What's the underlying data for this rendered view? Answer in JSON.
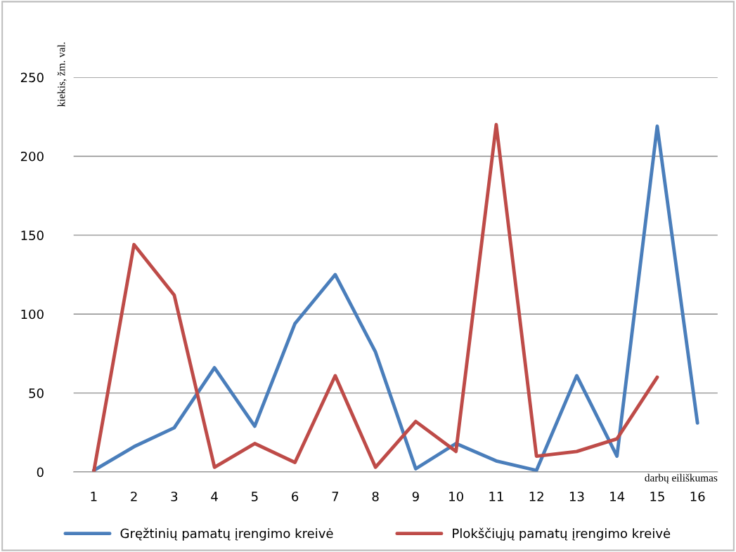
{
  "chart_data": {
    "type": "line",
    "ylabel": "kiekis, žm. val.",
    "xlabel": "darbų eiliškumas",
    "categories": [
      "1",
      "2",
      "3",
      "4",
      "5",
      "6",
      "7",
      "8",
      "9",
      "10",
      "11",
      "12",
      "13",
      "14",
      "15",
      "16"
    ],
    "series": [
      {
        "name": "Gręžtinių pamatų įrengimo kreivė",
        "color": "#4a7ebb",
        "values": [
          1,
          16,
          28,
          66,
          29,
          94,
          125,
          76,
          2,
          18,
          7,
          1,
          61,
          10,
          219,
          31
        ]
      },
      {
        "name": "Plokščiųjų pamatų įrengimo kreivė",
        "color": "#be4b48",
        "values": [
          0,
          144,
          112,
          3,
          18,
          6,
          61,
          3,
          32,
          13,
          220,
          10,
          13,
          21,
          60,
          null
        ]
      }
    ],
    "ylim": [
      0,
      250
    ],
    "yticks": [
      0,
      50,
      100,
      150,
      200,
      250
    ],
    "grid": "y",
    "legend": "bottom",
    "marker": "none",
    "line_style": "solid"
  }
}
